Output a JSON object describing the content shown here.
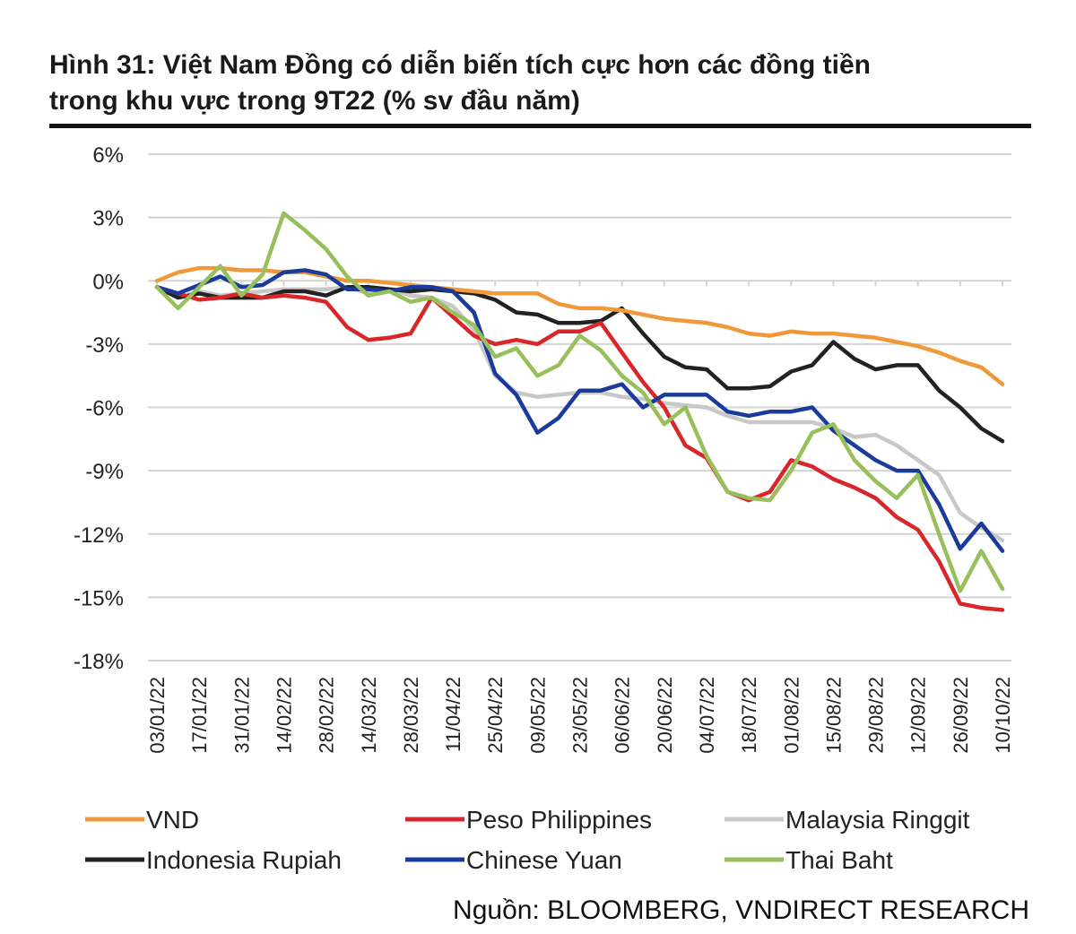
{
  "chart_data": {
    "type": "line",
    "title_lines": [
      "Hình 31: Việt Nam Đồng có diễn biến tích cực hơn các đồng tiền",
      "trong khu vực trong 9T22 (% sv đầu năm)"
    ],
    "source": "Nguồn: BLOOMBERG, VNDIRECT RESEARCH",
    "ylim": [
      -18,
      6
    ],
    "yticks": [
      6,
      3,
      0,
      -3,
      -6,
      -9,
      -12,
      -15,
      -18
    ],
    "ytick_labels": [
      "6%",
      "3%",
      "0%",
      "-3%",
      "-6%",
      "-9%",
      "-12%",
      "-15%",
      "-18%"
    ],
    "xtick_labels": [
      "03/01/22",
      "17/01/22",
      "31/01/22",
      "14/02/22",
      "28/02/22",
      "14/03/22",
      "28/03/22",
      "11/04/22",
      "25/04/22",
      "09/05/22",
      "23/05/22",
      "06/06/22",
      "20/06/22",
      "04/07/22",
      "18/07/22",
      "01/08/22",
      "15/08/22",
      "29/08/22",
      "12/09/22",
      "26/09/22",
      "10/10/22"
    ],
    "x_note": "values sampled weekly from 03/01/22 to 10/10/22 (41 points)",
    "grid": "horizontal",
    "legend_position": "bottom",
    "series": [
      {
        "name": "VND",
        "color": "#f0993a",
        "values": [
          0,
          0.4,
          0.6,
          0.6,
          0.5,
          0.5,
          0.4,
          0.4,
          0.2,
          0,
          0,
          -0.1,
          -0.2,
          -0.3,
          -0.4,
          -0.5,
          -0.6,
          -0.6,
          -0.6,
          -1.1,
          -1.3,
          -1.3,
          -1.4,
          -1.6,
          -1.8,
          -1.9,
          -2.0,
          -2.2,
          -2.5,
          -2.6,
          -2.4,
          -2.5,
          -2.5,
          -2.6,
          -2.7,
          -2.9,
          -3.1,
          -3.4,
          -3.8,
          -4.1,
          -4.9
        ]
      },
      {
        "name": "Peso Philippines",
        "color": "#d9262a",
        "values": [
          -0.3,
          -0.6,
          -0.9,
          -0.8,
          -0.6,
          -0.8,
          -0.7,
          -0.8,
          -1.0,
          -2.2,
          -2.8,
          -2.7,
          -2.5,
          -0.8,
          -1.7,
          -2.6,
          -3.0,
          -2.8,
          -3.0,
          -2.4,
          -2.4,
          -2.0,
          -3.4,
          -4.8,
          -6.0,
          -7.8,
          -8.4,
          -10.0,
          -10.4,
          -10.0,
          -8.5,
          -8.8,
          -9.4,
          -9.8,
          -10.3,
          -11.2,
          -11.8,
          -13.3,
          -15.3,
          -15.5,
          -15.6
        ]
      },
      {
        "name": "Malaysia Ringgit",
        "color": "#c8c8c8",
        "values": [
          -0.3,
          -0.8,
          -0.5,
          -0.7,
          -0.6,
          -0.5,
          -0.4,
          -0.4,
          -0.4,
          -0.3,
          -0.6,
          -0.4,
          -0.7,
          -0.8,
          -1.2,
          -2.3,
          -4.5,
          -5.3,
          -5.5,
          -5.4,
          -5.3,
          -5.3,
          -5.5,
          -5.6,
          -5.8,
          -5.9,
          -6.0,
          -6.4,
          -6.7,
          -6.7,
          -6.7,
          -6.7,
          -7.0,
          -7.4,
          -7.3,
          -7.8,
          -8.5,
          -9.2,
          -11.0,
          -11.7,
          -12.3
        ]
      },
      {
        "name": "Indonesia Rupiah",
        "color": "#222222",
        "values": [
          -0.3,
          -0.8,
          -0.6,
          -0.8,
          -0.8,
          -0.8,
          -0.5,
          -0.5,
          -0.7,
          -0.3,
          -0.3,
          -0.4,
          -0.5,
          -0.4,
          -0.5,
          -0.6,
          -0.9,
          -1.5,
          -1.6,
          -2.0,
          -2.0,
          -1.9,
          -1.3,
          -2.5,
          -3.6,
          -4.1,
          -4.2,
          -5.1,
          -5.1,
          -5.0,
          -4.3,
          -4.0,
          -2.9,
          -3.7,
          -4.2,
          -4.0,
          -4.0,
          -5.2,
          -6.0,
          -7.0,
          -7.6
        ]
      },
      {
        "name": "Chinese Yuan",
        "color": "#1a3a9c",
        "values": [
          -0.3,
          -0.6,
          -0.2,
          0.2,
          -0.3,
          -0.2,
          0.4,
          0.5,
          0.3,
          -0.4,
          -0.4,
          -0.5,
          -0.3,
          -0.3,
          -0.5,
          -1.5,
          -4.4,
          -5.4,
          -7.2,
          -6.5,
          -5.2,
          -5.2,
          -4.9,
          -6.0,
          -5.4,
          -5.4,
          -5.4,
          -6.2,
          -6.4,
          -6.2,
          -6.2,
          -6.0,
          -7.1,
          -7.8,
          -8.5,
          -9.0,
          -9.0,
          -10.6,
          -12.7,
          -11.5,
          -12.8
        ]
      },
      {
        "name": "Thai Baht",
        "color": "#97c05c",
        "values": [
          -0.3,
          -1.3,
          -0.3,
          0.7,
          -0.7,
          0.3,
          3.2,
          2.4,
          1.5,
          0.2,
          -0.7,
          -0.5,
          -1.0,
          -0.8,
          -1.5,
          -2.1,
          -3.6,
          -3.2,
          -4.5,
          -4.0,
          -2.6,
          -3.3,
          -4.5,
          -5.3,
          -6.8,
          -6.0,
          -8.3,
          -10.0,
          -10.3,
          -10.4,
          -9.0,
          -7.2,
          -6.8,
          -8.5,
          -9.5,
          -10.3,
          -9.2,
          -12.0,
          -14.7,
          -12.8,
          -14.6
        ]
      }
    ]
  }
}
